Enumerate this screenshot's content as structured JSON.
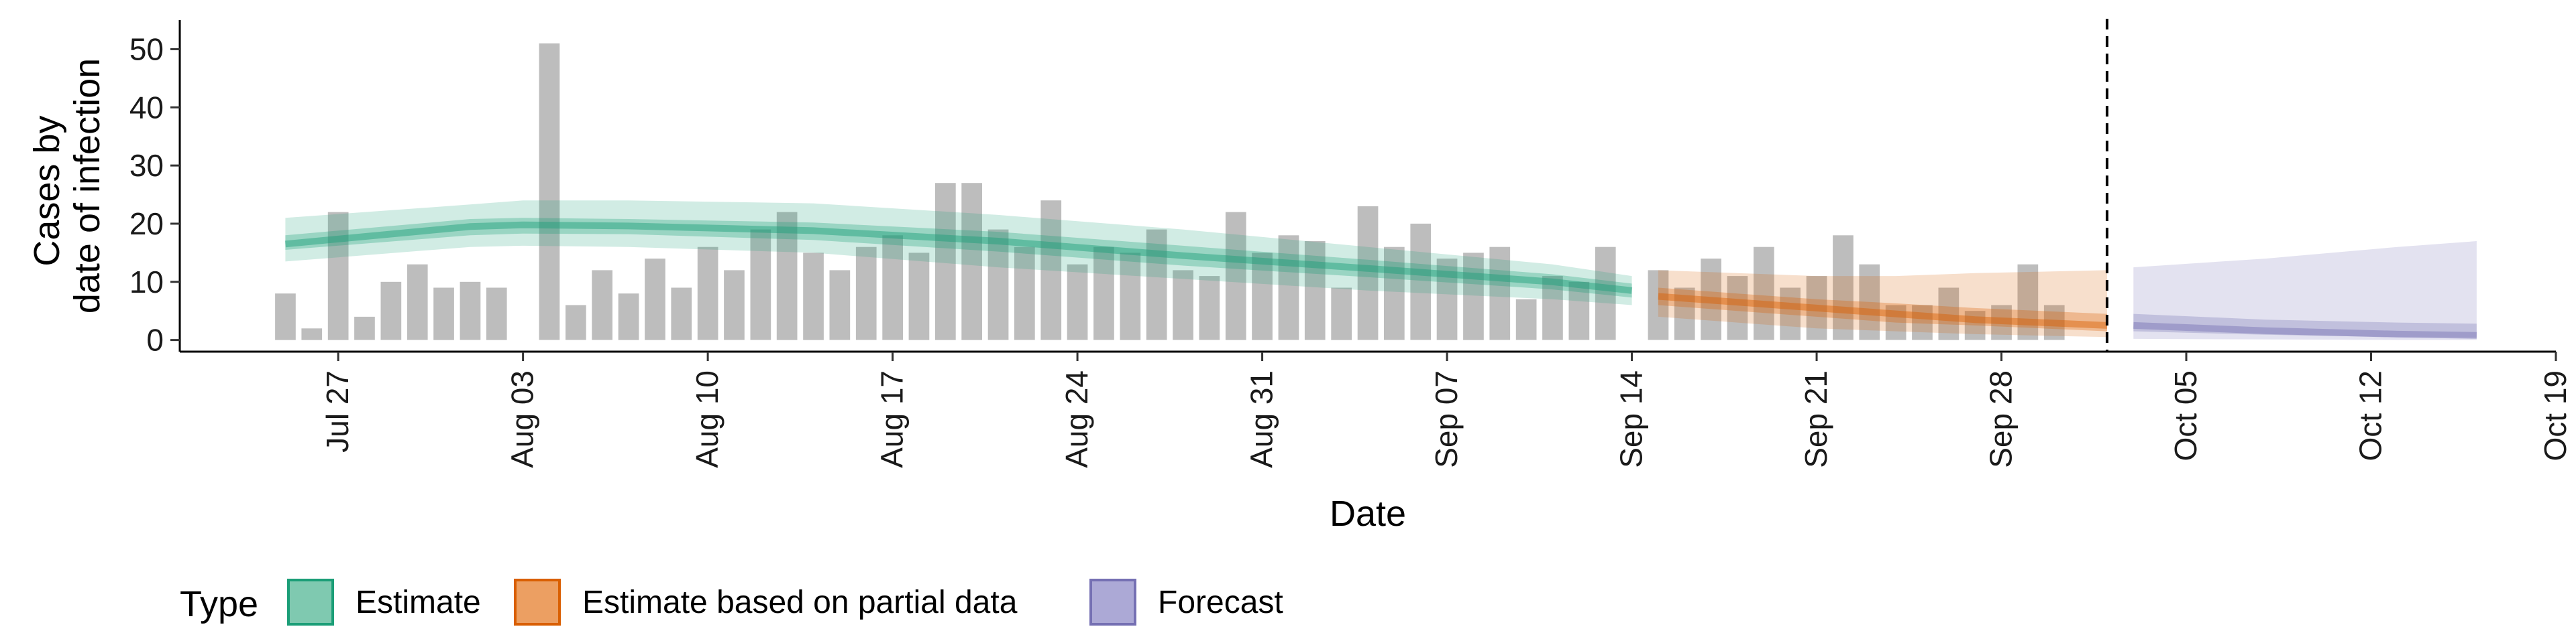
{
  "chart_data": {
    "type": "bar",
    "xlabel": "Date",
    "ylabel": [
      "Cases by",
      "date of infection"
    ],
    "ylim": [
      -2,
      55
    ],
    "yticks": [
      0,
      10,
      20,
      30,
      40,
      50
    ],
    "x_start": "2020-07-21",
    "xticks": [
      {
        "date": "2020-07-27",
        "label": "Jul 27"
      },
      {
        "date": "2020-08-03",
        "label": "Aug 03"
      },
      {
        "date": "2020-08-10",
        "label": "Aug 10"
      },
      {
        "date": "2020-08-17",
        "label": "Aug 17"
      },
      {
        "date": "2020-08-24",
        "label": "Aug 24"
      },
      {
        "date": "2020-08-31",
        "label": "Aug 31"
      },
      {
        "date": "2020-09-07",
        "label": "Sep 07"
      },
      {
        "date": "2020-09-14",
        "label": "Sep 14"
      },
      {
        "date": "2020-09-21",
        "label": "Sep 21"
      },
      {
        "date": "2020-09-28",
        "label": "Sep 28"
      },
      {
        "date": "2020-10-05",
        "label": "Oct 05"
      },
      {
        "date": "2020-10-12",
        "label": "Oct 12"
      },
      {
        "date": "2020-10-19",
        "label": "Oct 19"
      }
    ],
    "bars_start": "2020-07-25",
    "bars": [
      8,
      2,
      22,
      4,
      10,
      13,
      9,
      10,
      9,
      0,
      51,
      6,
      12,
      8,
      14,
      9,
      16,
      12,
      19,
      22,
      15,
      12,
      16,
      18,
      15,
      27,
      27,
      19,
      16,
      24,
      13,
      16,
      15,
      19,
      12,
      11,
      22,
      15,
      18,
      17,
      9,
      23,
      16,
      20,
      14,
      15,
      16,
      7,
      11,
      10,
      16,
      0,
      12,
      9,
      14,
      11,
      16,
      9,
      11,
      18,
      13,
      6,
      6,
      9,
      5,
      6,
      13,
      6
    ],
    "forecast_start_line": "2020-10-02",
    "series": [
      {
        "name": "Estimate",
        "color": "#1B9E77",
        "dates": [
          "2020-07-25",
          "2020-08-01",
          "2020-08-03",
          "2020-08-07",
          "2020-08-14",
          "2020-08-21",
          "2020-08-28",
          "2020-09-04",
          "2020-09-11",
          "2020-09-14"
        ],
        "median": [
          16.5,
          19.5,
          19.8,
          19.6,
          18.8,
          17.0,
          14.5,
          12.3,
          10.0,
          8.5
        ],
        "lower90": [
          13.5,
          16.0,
          16.2,
          16.0,
          15.0,
          12.5,
          10.5,
          8.5,
          7.0,
          6.0
        ],
        "upper90": [
          21.0,
          23.3,
          24.0,
          24.0,
          23.5,
          21.5,
          19.0,
          16.0,
          13.0,
          11.0
        ],
        "lower50": [
          15.5,
          18.0,
          18.3,
          18.2,
          17.2,
          15.2,
          12.8,
          10.8,
          8.7,
          7.3
        ],
        "upper50": [
          18.0,
          20.8,
          21.0,
          20.8,
          20.2,
          18.6,
          16.2,
          13.8,
          11.3,
          9.7
        ]
      },
      {
        "name": "Estimate based on partial data",
        "color": "#D95F02",
        "dates": [
          "2020-09-15",
          "2020-09-18",
          "2020-09-21",
          "2020-09-24",
          "2020-09-27",
          "2020-10-02"
        ],
        "median": [
          7.5,
          6.5,
          5.5,
          4.5,
          3.5,
          2.5
        ],
        "lower90": [
          4.0,
          3.0,
          2.0,
          1.5,
          1.0,
          0.5
        ],
        "upper90": [
          12.0,
          11.5,
          11.0,
          11.0,
          11.5,
          12.0
        ],
        "lower50": [
          6.0,
          5.0,
          4.0,
          3.0,
          2.5,
          1.5
        ],
        "upper50": [
          9.0,
          8.0,
          7.0,
          6.3,
          5.5,
          4.5
        ]
      },
      {
        "name": "Forecast",
        "color": "#7570B3",
        "dates": [
          "2020-10-03",
          "2020-10-08",
          "2020-10-13",
          "2020-10-16"
        ],
        "median": [
          2.5,
          1.6,
          1.0,
          0.8
        ],
        "lower90": [
          0.2,
          0.1,
          0.0,
          0.0
        ],
        "upper90": [
          12.5,
          14.0,
          16.0,
          17.0
        ],
        "lower50": [
          1.5,
          0.9,
          0.5,
          0.4
        ],
        "upper50": [
          4.5,
          3.5,
          3.0,
          2.8
        ]
      }
    ],
    "legend": {
      "title": "Type",
      "position": "bottom",
      "items": [
        {
          "label": "Estimate",
          "fill": "#7FC9B0",
          "stroke": "#1B9E77"
        },
        {
          "label": "Estimate based on partial data",
          "fill": "#EC9F62",
          "stroke": "#D95F02"
        },
        {
          "label": "Forecast",
          "fill": "#ACA9D6",
          "stroke": "#7570B3"
        }
      ]
    },
    "bar_color": "#BDBDBD",
    "grid": false
  }
}
